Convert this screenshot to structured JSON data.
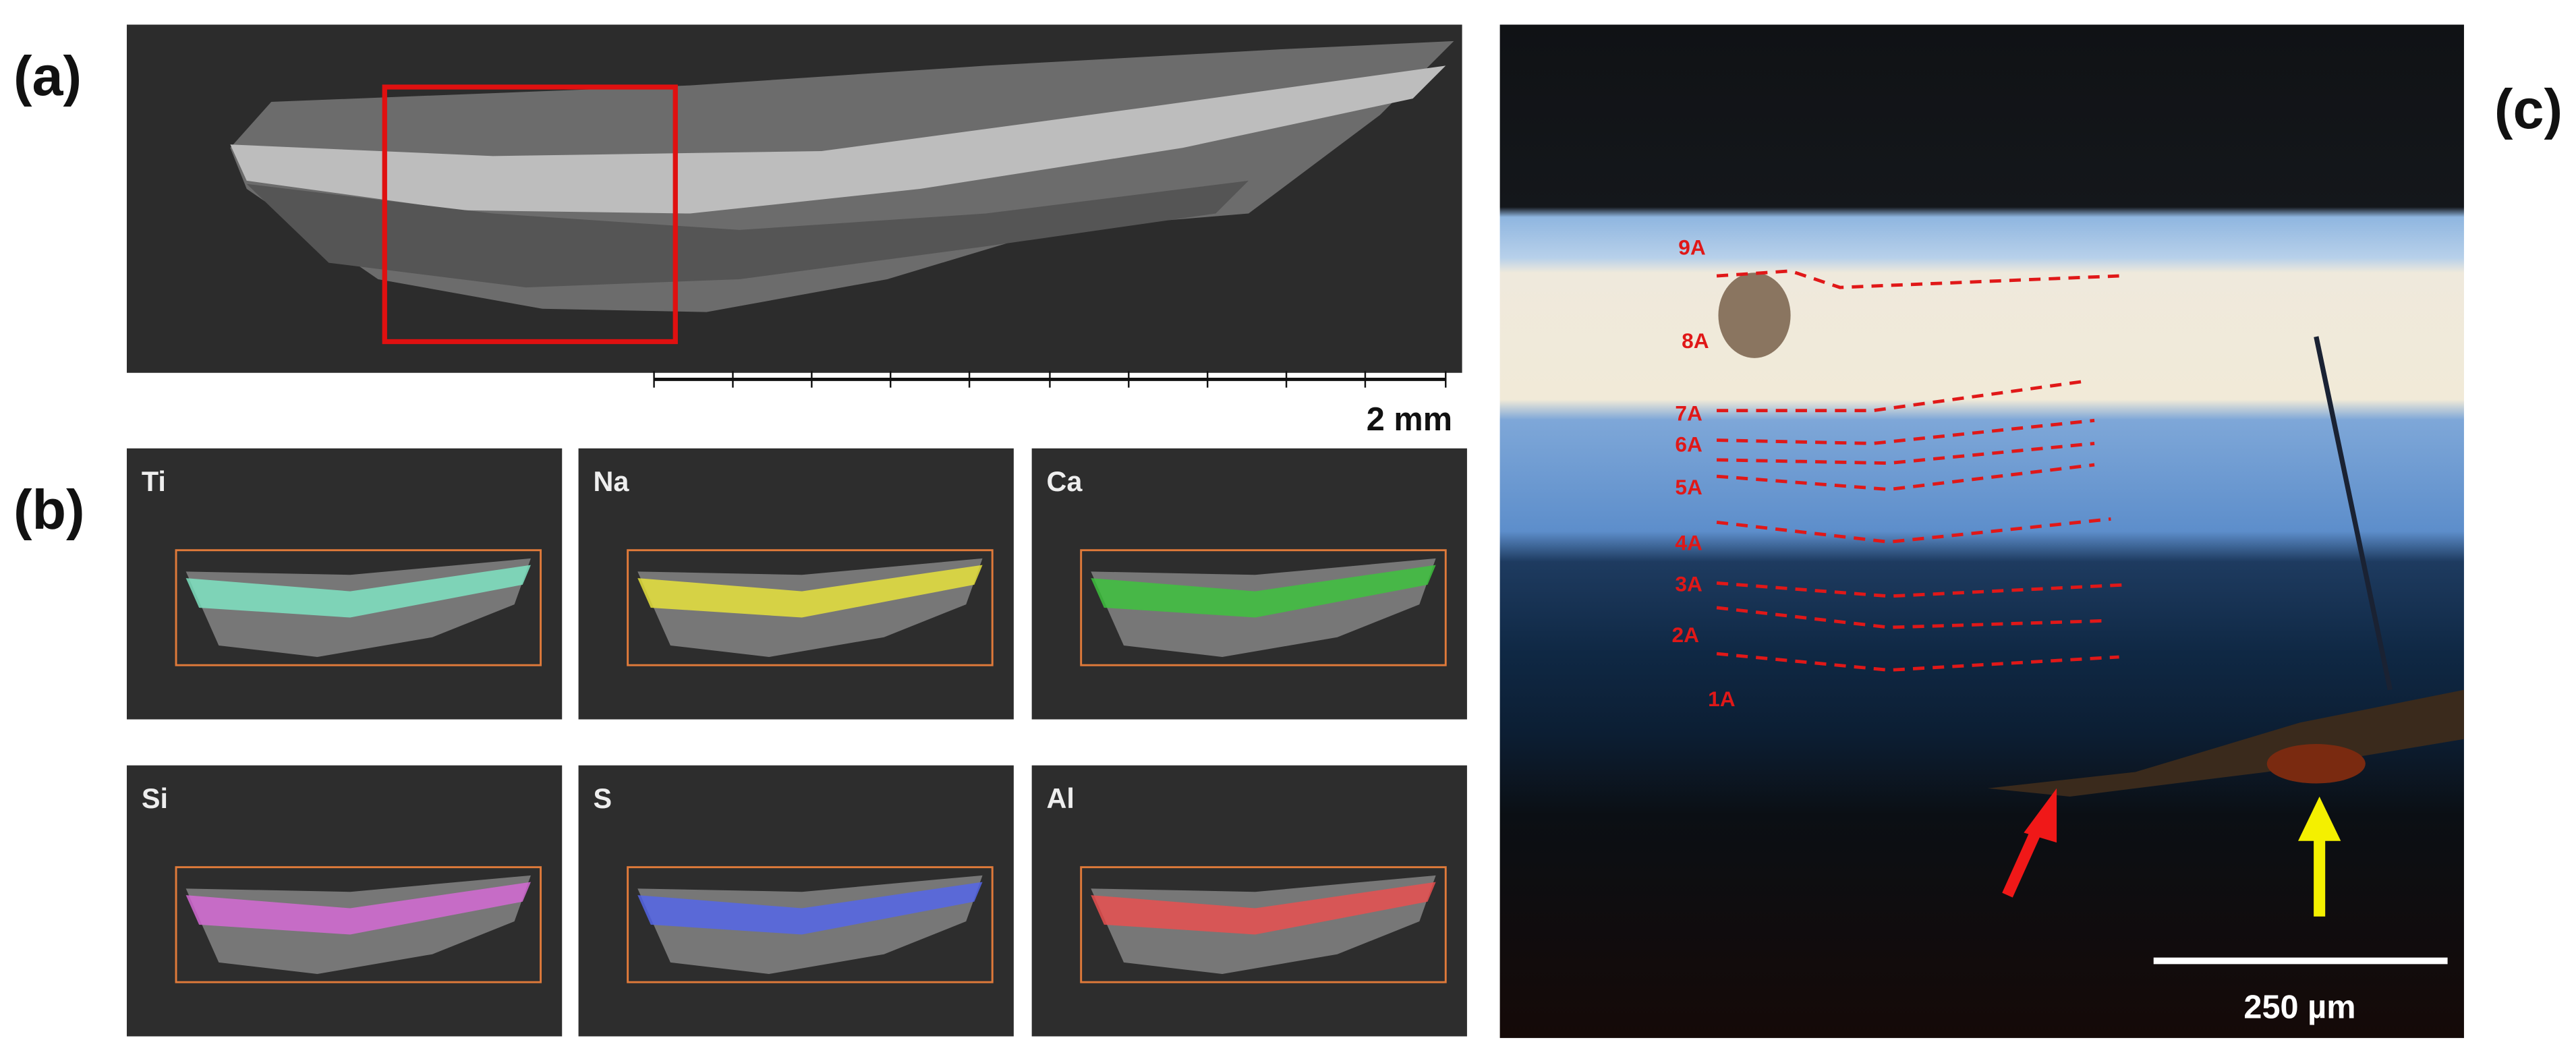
{
  "panels": {
    "a": {
      "label": "(a)",
      "scale_bar": "2 mm"
    },
    "b": {
      "label": "(b)",
      "maps": [
        "Ti",
        "Na",
        "Ca",
        "Si",
        "S",
        "Al"
      ]
    },
    "c": {
      "label": "(c)",
      "layers": [
        "9A",
        "8A",
        "7A",
        "6A",
        "5A",
        "4A",
        "3A",
        "2A",
        "1A"
      ],
      "scale_bar": "250 µm"
    }
  }
}
